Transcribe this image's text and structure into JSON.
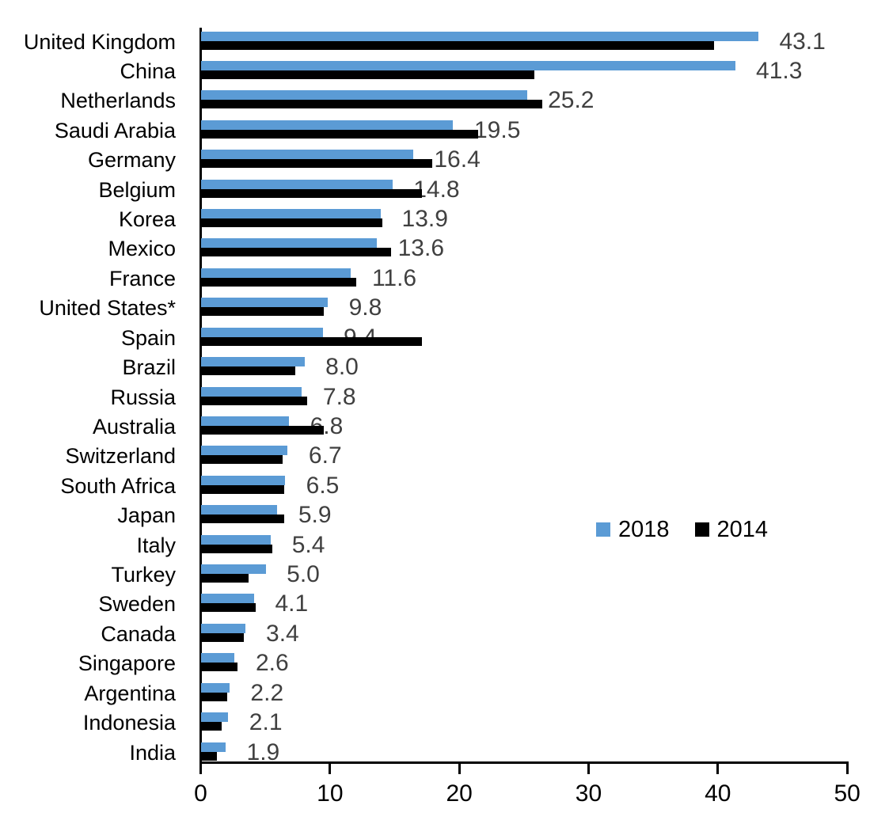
{
  "chart_data": {
    "type": "bar",
    "orientation": "horizontal",
    "title": "",
    "xlabel": "",
    "ylabel": "",
    "xlim": [
      0,
      50
    ],
    "x_ticks": [
      "0",
      "10",
      "20",
      "30",
      "40",
      "50"
    ],
    "grid": false,
    "legend_position": "middle-right",
    "categories": [
      "United Kingdom",
      "China",
      "Netherlands",
      "Saudi Arabia",
      "Germany",
      "Belgium",
      "Korea",
      "Mexico",
      "France",
      "United States*",
      "Spain",
      "Brazil",
      "Russia",
      "Australia",
      "Switzerland",
      "South Africa",
      "Japan",
      "Italy",
      "Turkey",
      "Sweden",
      "Canada",
      "Singapore",
      "Argentina",
      "Indonesia",
      "India"
    ],
    "series": [
      {
        "name": "2018",
        "color": "#5B9BD5",
        "values": [
          43.1,
          41.3,
          25.2,
          19.5,
          16.4,
          14.8,
          13.9,
          13.6,
          11.6,
          9.8,
          9.4,
          8.0,
          7.8,
          6.8,
          6.7,
          6.5,
          5.9,
          5.4,
          5.0,
          4.1,
          3.4,
          2.6,
          2.2,
          2.1,
          1.9
        ]
      },
      {
        "name": "2014",
        "color": "#000000",
        "values": [
          39.7,
          25.8,
          26.4,
          21.4,
          17.9,
          17.1,
          14.0,
          14.7,
          12.0,
          9.5,
          17.1,
          7.3,
          8.2,
          9.5,
          6.3,
          6.4,
          6.4,
          5.5,
          3.7,
          4.2,
          3.3,
          2.8,
          2.0,
          1.6,
          1.2
        ]
      }
    ],
    "value_labels": [
      "43.1",
      "41.3",
      "25.2",
      "19.5",
      "16.4",
      "14.8",
      "13.9",
      "13.6",
      "11.6",
      "9.8",
      "9.4",
      "8.0",
      "7.8",
      "6.8",
      "6.7",
      "6.5",
      "5.9",
      "5.4",
      "5.0",
      "4.1",
      "3.4",
      "2.6",
      "2.2",
      "2.1",
      "1.9"
    ],
    "value_label_series": "2018"
  },
  "legend": {
    "items": [
      {
        "label": "2018",
        "color": "#5B9BD5"
      },
      {
        "label": "2014",
        "color": "#000000"
      }
    ]
  },
  "colors": {
    "bar_2018": "#5B9BD5",
    "bar_2014": "#000000",
    "value_label": "#404040",
    "axis": "#000000",
    "background": "#FFFFFF"
  }
}
